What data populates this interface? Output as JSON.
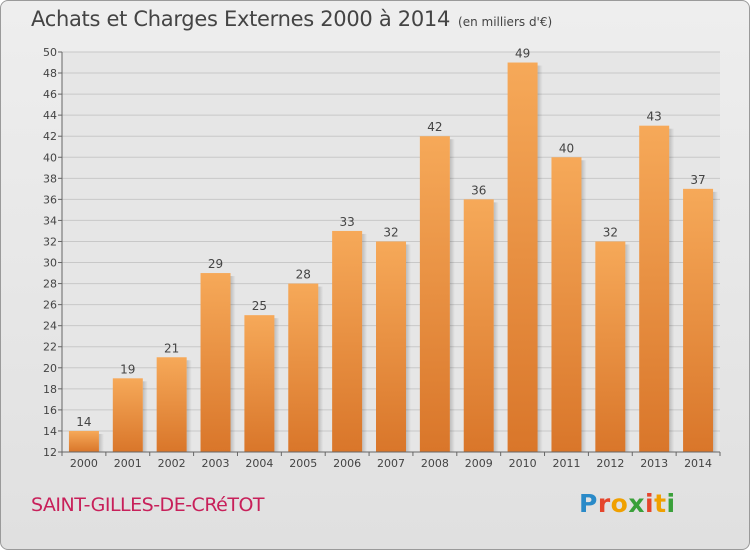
{
  "title": "Achats et Charges Externes 2000 à 2014",
  "subtitle": "(en milliers d'€)",
  "commune": "SAINT-GILLES-DE-CRéTOT",
  "logo_text": "Proxiti",
  "colors": {
    "bar_light": "#f6a959",
    "bar_dark": "#d9762a",
    "grid": "#c8c8c8",
    "title": "#444444",
    "commune": "#c8205a"
  },
  "chart_data": {
    "type": "bar",
    "title": "Achats et Charges Externes 2000 à 2014",
    "subtitle": "(en milliers d'€)",
    "categories": [
      "2000",
      "2001",
      "2002",
      "2003",
      "2004",
      "2005",
      "2006",
      "2007",
      "2008",
      "2009",
      "2010",
      "2011",
      "2012",
      "2013",
      "2014"
    ],
    "values": [
      14,
      19,
      21,
      29,
      25,
      28,
      33,
      32,
      42,
      36,
      49,
      40,
      32,
      43,
      37
    ],
    "ylim": [
      12,
      50
    ],
    "yticks": [
      12,
      14,
      16,
      18,
      20,
      22,
      24,
      26,
      28,
      30,
      32,
      34,
      36,
      38,
      40,
      42,
      44,
      46,
      48,
      50
    ],
    "grid": true,
    "xlabel": "",
    "ylabel": ""
  }
}
